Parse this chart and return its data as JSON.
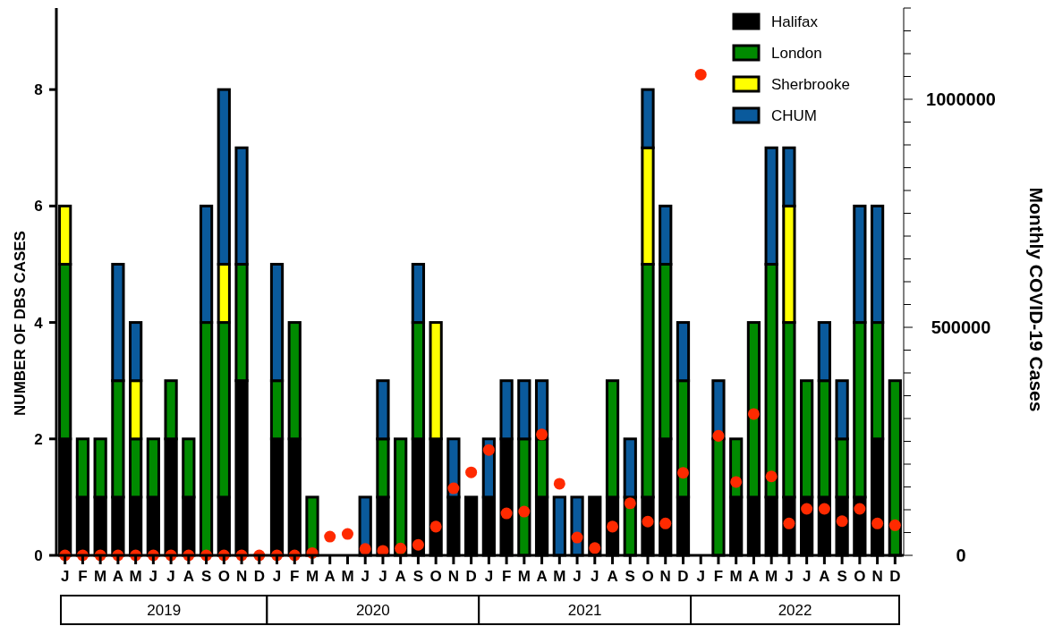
{
  "chart_data": {
    "type": "bar",
    "stacked": true,
    "ylabel": "NUMBER OF DBS CASES",
    "y2label": "Monthly COVID-19 Cases",
    "categories": [
      "J",
      "F",
      "M",
      "A",
      "M",
      "J",
      "J",
      "A",
      "S",
      "O",
      "N",
      "D",
      "J",
      "F",
      "M",
      "A",
      "M",
      "J",
      "J",
      "A",
      "S",
      "O",
      "N",
      "D",
      "J",
      "F",
      "M",
      "A",
      "M",
      "J",
      "J",
      "A",
      "S",
      "O",
      "N",
      "D",
      "J",
      "F",
      "M",
      "A",
      "M",
      "J",
      "J",
      "A",
      "S",
      "O",
      "N",
      "D"
    ],
    "annotations": [
      "2019",
      "2020",
      "2021",
      "2022"
    ],
    "ylim": [
      0,
      9.4
    ],
    "yticks": [
      0,
      2,
      4,
      6,
      8
    ],
    "y2lim": [
      0,
      1200000
    ],
    "y2ticks": [
      0,
      {
        "value": 50000,
        "label": null
      },
      {
        "value": 100000,
        "label": null
      },
      {
        "value": 150000,
        "label": null
      },
      {
        "value": 200000,
        "label": null
      },
      {
        "value": 250000,
        "label": null
      },
      {
        "value": 300000,
        "label": null
      },
      {
        "value": 350000,
        "label": null
      },
      {
        "value": 400000,
        "label": null
      },
      {
        "value": 450000,
        "label": null
      },
      500000,
      {
        "value": 550000,
        "label": null
      },
      {
        "value": 600000,
        "label": null
      },
      {
        "value": 650000,
        "label": null
      },
      {
        "value": 700000,
        "label": null
      },
      {
        "value": 750000,
        "label": null
      },
      {
        "value": 800000,
        "label": null
      },
      {
        "value": 850000,
        "label": null
      },
      {
        "value": 900000,
        "label": null
      },
      {
        "value": 950000,
        "label": null
      },
      1000000,
      {
        "value": 1050000,
        "label": null
      },
      {
        "value": 1100000,
        "label": null
      },
      {
        "value": 1150000,
        "label": null
      },
      {
        "value": 1200000,
        "label": null
      }
    ],
    "legend": "top right",
    "grid": false,
    "series": [
      {
        "name": "Halifax",
        "color": "#000000",
        "values": [
          2,
          1,
          1,
          1,
          1,
          1,
          2,
          1,
          0,
          1,
          3,
          0,
          2,
          2,
          0,
          0,
          0,
          0,
          1,
          0,
          2,
          2,
          1,
          1,
          1,
          2,
          0,
          1,
          0,
          0,
          1,
          1,
          0,
          1,
          2,
          1,
          0,
          0,
          1,
          1,
          1,
          1,
          1,
          1,
          1,
          1,
          2,
          0
        ]
      },
      {
        "name": "London",
        "color": "#008a00",
        "values": [
          3,
          1,
          1,
          2,
          1,
          1,
          1,
          1,
          4,
          3,
          2,
          0,
          1,
          2,
          1,
          0,
          0,
          0,
          1,
          2,
          2,
          0,
          0,
          0,
          0,
          0,
          2,
          1,
          0,
          0,
          0,
          2,
          1,
          4,
          3,
          2,
          0,
          2,
          1,
          3,
          4,
          3,
          2,
          2,
          1,
          3,
          2,
          3
        ]
      },
      {
        "name": "Sherbrooke",
        "color": "#ffff00",
        "values": [
          1,
          0,
          0,
          0,
          1,
          0,
          0,
          0,
          0,
          1,
          0,
          0,
          0,
          0,
          0,
          0,
          0,
          0,
          0,
          0,
          0,
          2,
          0,
          0,
          0,
          0,
          0,
          0,
          0,
          0,
          0,
          0,
          0,
          2,
          0,
          0,
          0,
          0,
          0,
          0,
          0,
          2,
          0,
          0,
          0,
          0,
          0,
          0
        ]
      },
      {
        "name": "CHUM",
        "color": "#0a5a9c",
        "values": [
          0,
          0,
          0,
          2,
          1,
          0,
          0,
          0,
          2,
          3,
          2,
          0,
          2,
          0,
          0,
          0,
          0,
          1,
          1,
          0,
          1,
          0,
          1,
          0,
          1,
          1,
          1,
          1,
          1,
          1,
          0,
          0,
          1,
          1,
          1,
          1,
          0,
          1,
          0,
          0,
          2,
          1,
          0,
          1,
          1,
          2,
          2,
          0
        ]
      },
      {
        "type": "scatter",
        "axis": "y2",
        "marker": "circle",
        "color": "#ff2a00",
        "values": [
          0,
          0,
          0,
          0,
          0,
          0,
          0,
          0,
          0,
          0,
          0,
          0,
          0,
          0,
          5000,
          41000,
          47000,
          14000,
          10000,
          15000,
          23000,
          63000,
          147000,
          182000,
          231000,
          92000,
          96000,
          265000,
          157000,
          39000,
          16000,
          63000,
          114000,
          74000,
          70000,
          181000,
          1054000,
          262000,
          161000,
          310000,
          173000,
          70000,
          102000,
          102000,
          75000,
          102000,
          70000,
          66000
        ]
      }
    ]
  }
}
